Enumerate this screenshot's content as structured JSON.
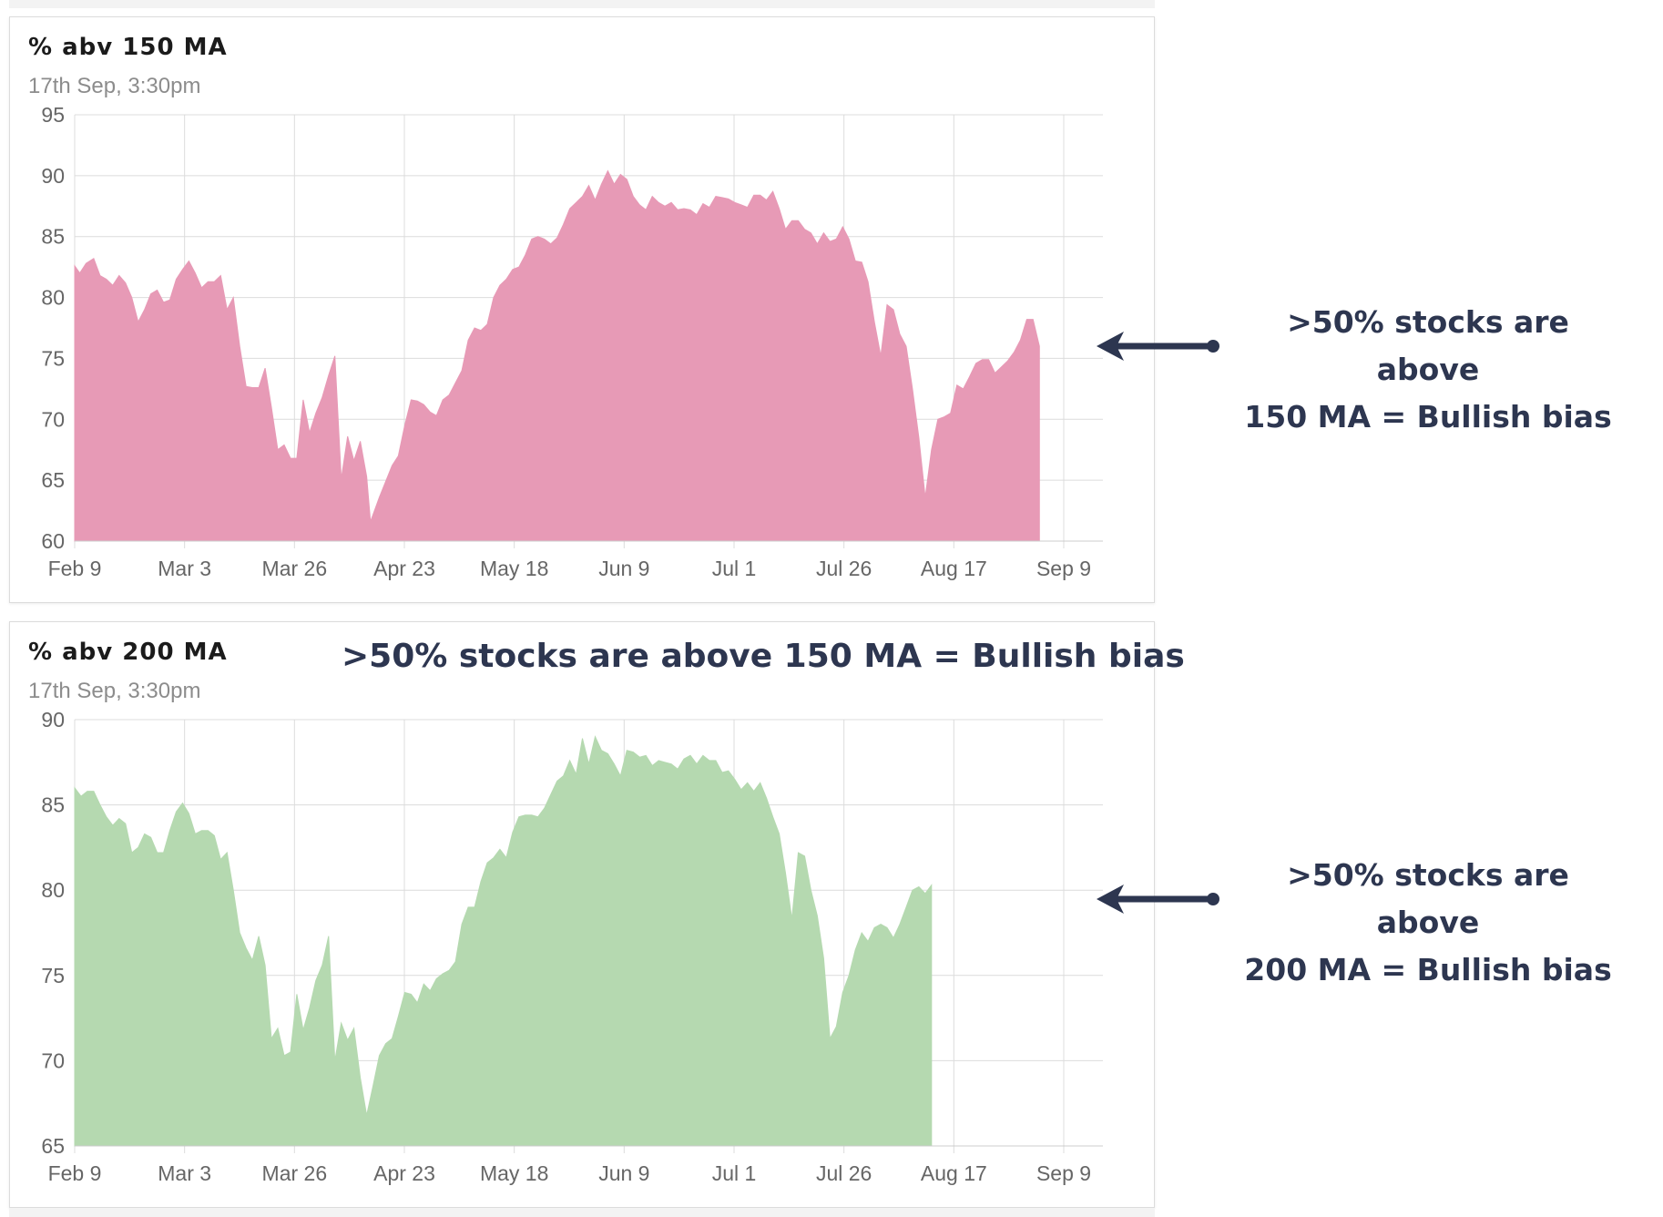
{
  "chart_data": [
    {
      "type": "area",
      "title": "% abv 150 MA",
      "subtitle": "17th Sep, 3:30pm",
      "ylim": [
        60,
        95
      ],
      "yticks": [
        95,
        90,
        85,
        80,
        75,
        70,
        65,
        60
      ],
      "xticks": [
        "Feb 9",
        "Mar 3",
        "Mar 26",
        "Apr 23",
        "May 18",
        "Jun 9",
        "Jul 1",
        "Jul 26",
        "Aug 17",
        "Sep 9"
      ],
      "grid": true,
      "color": "#e79ab6",
      "points": [
        [
          0,
          82.6
        ],
        [
          0.4,
          82
        ],
        [
          0.9,
          82.8
        ],
        [
          1.5,
          83.2
        ],
        [
          2,
          81.8
        ],
        [
          2.5,
          81.5
        ],
        [
          3,
          81
        ],
        [
          3.5,
          81.8
        ],
        [
          4,
          81.2
        ],
        [
          4.5,
          80
        ],
        [
          5,
          78
        ],
        [
          5.5,
          79
        ],
        [
          6,
          80.3
        ],
        [
          6.5,
          80.6
        ],
        [
          7,
          79.6
        ],
        [
          7.5,
          79.8
        ],
        [
          8,
          81.5
        ],
        [
          8.5,
          82.3
        ],
        [
          9,
          83
        ],
        [
          9.5,
          82
        ],
        [
          10,
          80.8
        ],
        [
          10.5,
          81.3
        ],
        [
          11,
          81.3
        ],
        [
          11.5,
          81.8
        ],
        [
          12,
          79
        ],
        [
          12.5,
          80
        ],
        [
          13,
          76
        ],
        [
          13.5,
          72.7
        ],
        [
          14,
          72.6
        ],
        [
          14.5,
          72.6
        ],
        [
          15,
          74.2
        ],
        [
          15.5,
          71
        ],
        [
          16,
          67.5
        ],
        [
          16.5,
          67.9
        ],
        [
          17,
          66.8
        ],
        [
          17.5,
          66.8
        ],
        [
          18,
          71.6
        ],
        [
          18.5,
          68.9
        ],
        [
          19,
          70.5
        ],
        [
          19.5,
          71.8
        ],
        [
          20,
          73.6
        ],
        [
          20.5,
          75.2
        ],
        [
          21,
          65.1
        ],
        [
          21.5,
          68.6
        ],
        [
          22,
          66.6
        ],
        [
          22.5,
          68.2
        ],
        [
          23,
          65.3
        ],
        [
          23.3,
          61.6
        ],
        [
          24,
          63.6
        ],
        [
          25,
          66.2
        ],
        [
          25.5,
          67
        ],
        [
          26,
          69.5
        ],
        [
          26.5,
          71.6
        ],
        [
          27,
          71.5
        ],
        [
          27.5,
          71.2
        ],
        [
          28,
          70.6
        ],
        [
          28.5,
          70.3
        ],
        [
          29,
          71.6
        ],
        [
          29.5,
          72
        ],
        [
          30,
          73
        ],
        [
          30.5,
          74
        ],
        [
          31,
          76.5
        ],
        [
          31.5,
          77.5
        ],
        [
          32,
          77.3
        ],
        [
          32.5,
          77.8
        ],
        [
          33,
          80
        ],
        [
          33.5,
          81
        ],
        [
          34,
          81.5
        ],
        [
          34.5,
          82.3
        ],
        [
          35,
          82.5
        ],
        [
          35.5,
          83.5
        ],
        [
          36,
          84.8
        ],
        [
          36.5,
          85
        ],
        [
          37,
          84.8
        ],
        [
          37.5,
          84.4
        ],
        [
          38,
          84.9
        ],
        [
          38.5,
          86
        ],
        [
          39,
          87.3
        ],
        [
          39.5,
          87.8
        ],
        [
          40,
          88.3
        ],
        [
          40.5,
          89.2
        ],
        [
          41,
          88
        ],
        [
          41.5,
          89.3
        ],
        [
          42,
          90.4
        ],
        [
          42.5,
          89.3
        ],
        [
          43,
          90.1
        ],
        [
          43.5,
          89.7
        ],
        [
          44,
          88.3
        ],
        [
          44.5,
          87.6
        ],
        [
          45,
          87.2
        ],
        [
          45.5,
          88.3
        ],
        [
          46,
          87.8
        ],
        [
          46.5,
          87.5
        ],
        [
          47,
          87.8
        ],
        [
          47.5,
          87.2
        ],
        [
          48,
          87.3
        ],
        [
          48.5,
          87.2
        ],
        [
          49,
          86.8
        ],
        [
          49.5,
          87.7
        ],
        [
          50,
          87.4
        ],
        [
          50.5,
          88.3
        ],
        [
          51,
          88.2
        ],
        [
          51.5,
          88.1
        ],
        [
          52,
          87.8
        ],
        [
          52.5,
          87.6
        ],
        [
          53,
          87.4
        ],
        [
          53.5,
          88.4
        ],
        [
          54,
          88.4
        ],
        [
          54.5,
          88
        ],
        [
          55,
          88.7
        ],
        [
          55.5,
          87.3
        ],
        [
          56,
          85.6
        ],
        [
          56.5,
          86.3
        ],
        [
          57,
          86.3
        ],
        [
          57.5,
          85.6
        ],
        [
          58,
          85.3
        ],
        [
          58.5,
          84.4
        ],
        [
          59,
          85.3
        ],
        [
          59.5,
          84.6
        ],
        [
          60,
          84.8
        ],
        [
          60.5,
          85.8
        ],
        [
          61,
          84.8
        ],
        [
          61.5,
          83
        ],
        [
          62,
          82.9
        ],
        [
          62.5,
          81.3
        ],
        [
          63,
          78
        ],
        [
          63.5,
          75.2
        ],
        [
          64,
          79.4
        ],
        [
          64.5,
          79
        ],
        [
          65,
          77
        ],
        [
          65.5,
          76
        ],
        [
          66,
          72.5
        ],
        [
          66.5,
          68.5
        ],
        [
          67,
          63.6
        ],
        [
          67.5,
          67.5
        ],
        [
          68,
          70
        ],
        [
          68.5,
          70.2
        ],
        [
          69,
          70.5
        ],
        [
          69.5,
          72.8
        ],
        [
          70,
          72.5
        ],
        [
          70.5,
          73.5
        ],
        [
          71,
          74.6
        ],
        [
          71.5,
          74.9
        ],
        [
          72,
          74.9
        ],
        [
          72.5,
          73.8
        ],
        [
          73,
          74.3
        ],
        [
          73.5,
          74.8
        ],
        [
          74,
          75.5
        ],
        [
          74.5,
          76.5
        ],
        [
          75,
          78.2
        ],
        [
          75.5,
          78.2
        ],
        [
          76,
          76
        ]
      ]
    },
    {
      "type": "area",
      "title": "% abv 200 MA",
      "subtitle": "17th Sep, 3:30pm",
      "ylim": [
        65,
        90
      ],
      "yticks": [
        90,
        85,
        80,
        75,
        70,
        65
      ],
      "xticks": [
        "Feb 9",
        "Mar 3",
        "Mar 26",
        "Apr 23",
        "May 18",
        "Jun 9",
        "Jul 1",
        "Jul 26",
        "Aug 17",
        "Sep 9"
      ],
      "grid": true,
      "color": "#b5d9b0",
      "points": [
        [
          0,
          86
        ],
        [
          0.5,
          85.5
        ],
        [
          1,
          85.8
        ],
        [
          1.5,
          85.8
        ],
        [
          2,
          85
        ],
        [
          2.5,
          84.3
        ],
        [
          3,
          83.8
        ],
        [
          3.5,
          84.2
        ],
        [
          4,
          83.9
        ],
        [
          4.5,
          82.2
        ],
        [
          5,
          82.5
        ],
        [
          5.5,
          83.3
        ],
        [
          6,
          83.1
        ],
        [
          6.5,
          82.2
        ],
        [
          7,
          82.2
        ],
        [
          7.5,
          83.5
        ],
        [
          8,
          84.6
        ],
        [
          8.5,
          85.1
        ],
        [
          9,
          84.5
        ],
        [
          9.5,
          83.3
        ],
        [
          10,
          83.5
        ],
        [
          10.5,
          83.5
        ],
        [
          11,
          83.2
        ],
        [
          11.5,
          81.8
        ],
        [
          12,
          82.2
        ],
        [
          12.5,
          80
        ],
        [
          13,
          77.5
        ],
        [
          13.5,
          76.6
        ],
        [
          14,
          75.9
        ],
        [
          14.5,
          77.3
        ],
        [
          15,
          75.6
        ],
        [
          15.5,
          71.3
        ],
        [
          16,
          71.9
        ],
        [
          16.5,
          70.3
        ],
        [
          17,
          70.5
        ],
        [
          17.5,
          73.9
        ],
        [
          18,
          71.8
        ],
        [
          18.5,
          73.1
        ],
        [
          19,
          74.7
        ],
        [
          19.5,
          75.6
        ],
        [
          20,
          77.3
        ],
        [
          20.5,
          70
        ],
        [
          21,
          72.2
        ],
        [
          21.5,
          71.2
        ],
        [
          22,
          71.9
        ],
        [
          22.5,
          69
        ],
        [
          23,
          66.8
        ],
        [
          23.5,
          68.5
        ],
        [
          24,
          70.3
        ],
        [
          24.5,
          71
        ],
        [
          25,
          71.3
        ],
        [
          25.5,
          72.6
        ],
        [
          26,
          74
        ],
        [
          26.5,
          73.9
        ],
        [
          27,
          73.4
        ],
        [
          27.5,
          74.5
        ],
        [
          28,
          74.1
        ],
        [
          28.5,
          74.8
        ],
        [
          29,
          75.1
        ],
        [
          29.5,
          75.3
        ],
        [
          30,
          75.8
        ],
        [
          30.5,
          78
        ],
        [
          31,
          79
        ],
        [
          31.5,
          79
        ],
        [
          32,
          80.5
        ],
        [
          32.5,
          81.6
        ],
        [
          33,
          81.9
        ],
        [
          33.5,
          82.4
        ],
        [
          34,
          81.9
        ],
        [
          34.5,
          83.4
        ],
        [
          35,
          84.3
        ],
        [
          35.5,
          84.4
        ],
        [
          36,
          84.4
        ],
        [
          36.5,
          84.3
        ],
        [
          37,
          84.8
        ],
        [
          37.5,
          85.6
        ],
        [
          38,
          86.4
        ],
        [
          38.5,
          86.7
        ],
        [
          39,
          87.6
        ],
        [
          39.5,
          86.8
        ],
        [
          40,
          88.9
        ],
        [
          40.5,
          87.4
        ],
        [
          41,
          89
        ],
        [
          41.5,
          88.2
        ],
        [
          42,
          88
        ],
        [
          42.5,
          87.4
        ],
        [
          43,
          86.7
        ],
        [
          43.5,
          88.2
        ],
        [
          44,
          88.1
        ],
        [
          44.5,
          87.8
        ],
        [
          45,
          87.9
        ],
        [
          45.5,
          87.3
        ],
        [
          46,
          87.6
        ],
        [
          46.5,
          87.5
        ],
        [
          47,
          87.4
        ],
        [
          47.5,
          87.1
        ],
        [
          48,
          87.7
        ],
        [
          48.5,
          87.9
        ],
        [
          49,
          87.4
        ],
        [
          49.5,
          87.9
        ],
        [
          50,
          87.6
        ],
        [
          50.5,
          87.6
        ],
        [
          51,
          86.9
        ],
        [
          51.5,
          87
        ],
        [
          52,
          86.5
        ],
        [
          52.5,
          85.9
        ],
        [
          53,
          86.3
        ],
        [
          53.5,
          85.8
        ],
        [
          54,
          86.3
        ],
        [
          54.5,
          85.4
        ],
        [
          55,
          84.3
        ],
        [
          55.5,
          83.3
        ],
        [
          56,
          81
        ],
        [
          56.5,
          78.3
        ],
        [
          57,
          82.2
        ],
        [
          57.5,
          82
        ],
        [
          58,
          80
        ],
        [
          58.5,
          78.5
        ],
        [
          59,
          76
        ],
        [
          59.5,
          71.3
        ],
        [
          60,
          72
        ],
        [
          60.5,
          74
        ],
        [
          61,
          75
        ],
        [
          61.5,
          76.5
        ],
        [
          62,
          77.5
        ],
        [
          62.5,
          77
        ],
        [
          63,
          77.8
        ],
        [
          63.5,
          78
        ],
        [
          64,
          77.8
        ],
        [
          64.5,
          77.2
        ],
        [
          65,
          78
        ],
        [
          65.5,
          79
        ],
        [
          66,
          80
        ],
        [
          66.5,
          80.2
        ],
        [
          67,
          79.8
        ],
        [
          67.5,
          80.3
        ]
      ]
    }
  ],
  "annotations": {
    "inline": ">50% stocks are above 150 MA =  Bullish bias",
    "side_150": [
      ">50% stocks are above",
      "150 MA =  Bullish bias"
    ],
    "side_200": [
      ">50% stocks are above",
      "200 MA =  Bullish bias"
    ],
    "color": "#2d3650"
  }
}
